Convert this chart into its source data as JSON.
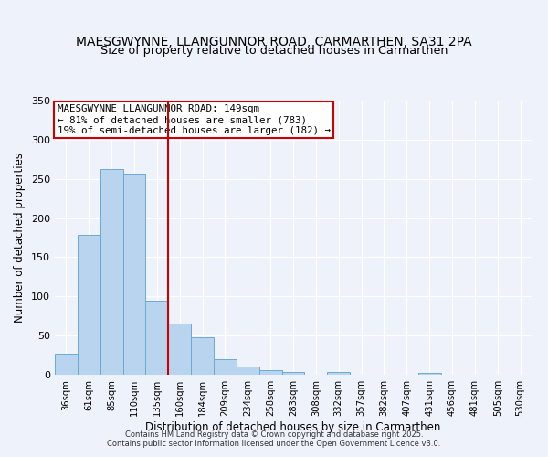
{
  "title": "MAESGWYNNE, LLANGUNNOR ROAD, CARMARTHEN, SA31 2PA",
  "subtitle": "Size of property relative to detached houses in Carmarthen",
  "xlabel": "Distribution of detached houses by size in Carmarthen",
  "ylabel": "Number of detached properties",
  "bin_labels": [
    "36sqm",
    "61sqm",
    "85sqm",
    "110sqm",
    "135sqm",
    "160sqm",
    "184sqm",
    "209sqm",
    "234sqm",
    "258sqm",
    "283sqm",
    "308sqm",
    "332sqm",
    "357sqm",
    "382sqm",
    "407sqm",
    "431sqm",
    "456sqm",
    "481sqm",
    "505sqm",
    "530sqm"
  ],
  "bar_heights": [
    27,
    178,
    263,
    257,
    95,
    65,
    48,
    20,
    11,
    6,
    4,
    0,
    3,
    0,
    0,
    0,
    2,
    0,
    0,
    0,
    0
  ],
  "bar_color": "#b8d4ee",
  "bar_edge_color": "#6aaad4",
  "vline_x": 4.5,
  "vline_color": "#cc0000",
  "annotation_title": "MAESGWYNNE LLANGUNNOR ROAD: 149sqm",
  "annotation_line1": "← 81% of detached houses are smaller (783)",
  "annotation_line2": "19% of semi-detached houses are larger (182) →",
  "annotation_box_color": "#cc0000",
  "ylim": [
    0,
    350
  ],
  "yticks": [
    0,
    50,
    100,
    150,
    200,
    250,
    300,
    350
  ],
  "background_color": "#eef2fa",
  "footer1": "Contains HM Land Registry data © Crown copyright and database right 2025.",
  "footer2": "Contains public sector information licensed under the Open Government Licence v3.0.",
  "title_fontsize": 10,
  "annotation_fontsize": 7.8
}
